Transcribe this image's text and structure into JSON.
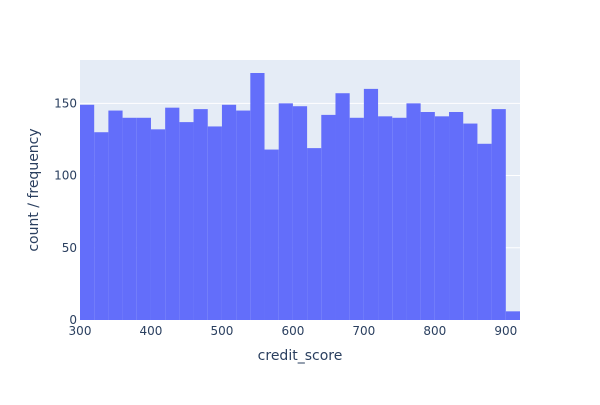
{
  "chart_data": {
    "type": "bar",
    "subtype": "histogram",
    "xlabel": "credit_score",
    "ylabel": "count / frequency",
    "xlim": [
      300,
      920
    ],
    "ylim": [
      0,
      180
    ],
    "x_ticks": [
      300,
      400,
      500,
      600,
      700,
      800,
      900
    ],
    "y_ticks": [
      0,
      50,
      100,
      150
    ],
    "bin_width": 20,
    "bins": [
      {
        "start": 300,
        "end": 320,
        "count": 149
      },
      {
        "start": 320,
        "end": 340,
        "count": 130
      },
      {
        "start": 340,
        "end": 360,
        "count": 145
      },
      {
        "start": 360,
        "end": 380,
        "count": 140
      },
      {
        "start": 380,
        "end": 400,
        "count": 140
      },
      {
        "start": 400,
        "end": 420,
        "count": 132
      },
      {
        "start": 420,
        "end": 440,
        "count": 147
      },
      {
        "start": 440,
        "end": 460,
        "count": 137
      },
      {
        "start": 460,
        "end": 480,
        "count": 146
      },
      {
        "start": 480,
        "end": 500,
        "count": 134
      },
      {
        "start": 500,
        "end": 520,
        "count": 149
      },
      {
        "start": 520,
        "end": 540,
        "count": 145
      },
      {
        "start": 540,
        "end": 560,
        "count": 171
      },
      {
        "start": 560,
        "end": 580,
        "count": 118
      },
      {
        "start": 580,
        "end": 600,
        "count": 150
      },
      {
        "start": 600,
        "end": 620,
        "count": 148
      },
      {
        "start": 620,
        "end": 640,
        "count": 119
      },
      {
        "start": 640,
        "end": 660,
        "count": 142
      },
      {
        "start": 660,
        "end": 680,
        "count": 157
      },
      {
        "start": 680,
        "end": 700,
        "count": 140
      },
      {
        "start": 700,
        "end": 720,
        "count": 160
      },
      {
        "start": 720,
        "end": 740,
        "count": 141
      },
      {
        "start": 740,
        "end": 760,
        "count": 140
      },
      {
        "start": 760,
        "end": 780,
        "count": 150
      },
      {
        "start": 780,
        "end": 800,
        "count": 144
      },
      {
        "start": 800,
        "end": 820,
        "count": 141
      },
      {
        "start": 820,
        "end": 840,
        "count": 144
      },
      {
        "start": 840,
        "end": 860,
        "count": 136
      },
      {
        "start": 860,
        "end": 880,
        "count": 122
      },
      {
        "start": 880,
        "end": 900,
        "count": 146
      },
      {
        "start": 900,
        "end": 920,
        "count": 6
      }
    ],
    "grid": true,
    "legend": "none",
    "colors": {
      "bar": "#636efa",
      "plot_background": "#e5ecf6",
      "grid": "#ffffff",
      "text": "#2a3f5f"
    }
  }
}
